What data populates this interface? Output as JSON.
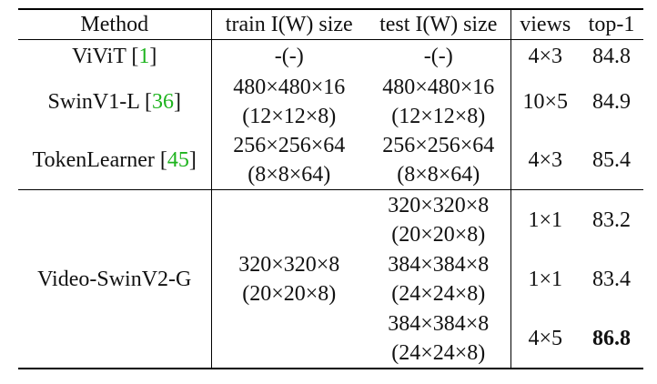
{
  "table": {
    "header": [
      "Method",
      "train I(W) size",
      "test I(W) size",
      "views",
      "top-1"
    ],
    "rows": [
      {
        "method": "ViViT",
        "cite": [
          "[",
          "1",
          "]"
        ],
        "train": [
          "-(-)"
        ],
        "test": [
          "-(-)"
        ],
        "views": "4×3",
        "top1": "84.8"
      },
      {
        "method": "SwinV1-L",
        "cite": [
          "[",
          "36",
          "]"
        ],
        "train": [
          "480×480×16",
          "(12×12×8)"
        ],
        "test": [
          "480×480×16",
          "(12×12×8)"
        ],
        "views": "10×5",
        "top1": "84.9"
      },
      {
        "method": "TokenLearner",
        "cite": [
          "[",
          "45",
          "]"
        ],
        "train": [
          "256×256×64",
          "(8×8×64)"
        ],
        "test": [
          "256×256×64",
          "(8×8×64)"
        ],
        "views": "4×3",
        "top1": "85.4"
      }
    ],
    "group": {
      "method": "Video-SwinV2-G",
      "train": [
        "320×320×8",
        "(20×20×8)"
      ],
      "results": [
        {
          "test": [
            "320×320×8",
            "(20×20×8)"
          ],
          "views": "1×1",
          "top1": "83.2"
        },
        {
          "test": [
            "384×384×8",
            "(24×24×8)"
          ],
          "views": "1×1",
          "top1": "83.4"
        },
        {
          "test": [
            "384×384×8",
            "(24×24×8)"
          ],
          "views": "4×5",
          "top1": "86.8"
        }
      ]
    }
  }
}
